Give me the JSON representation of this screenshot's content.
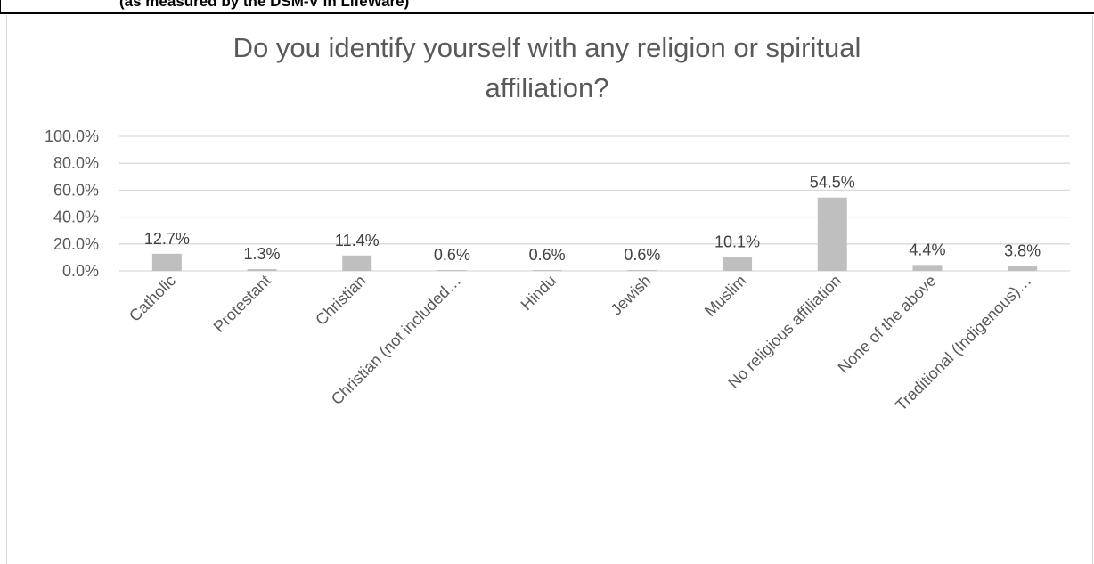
{
  "document": {
    "heading_fragment": "(as measured by the DSM-V in LifeWare)"
  },
  "chart_data": {
    "type": "bar",
    "title_lines": [
      "Do you identify yourself with any religion or spiritual",
      "affiliation?"
    ],
    "categories": [
      "Catholic",
      "Protestant",
      "Christian",
      "Christian (not included…",
      "Hindu",
      "Jewish",
      "Muslim",
      "No religious affiliation",
      "None of the above",
      "Traditional (Indigenous)…"
    ],
    "values": [
      12.7,
      1.3,
      11.4,
      0.6,
      0.6,
      0.6,
      10.1,
      54.5,
      4.4,
      3.8
    ],
    "data_labels": [
      "12.7%",
      "1.3%",
      "11.4%",
      "0.6%",
      "0.6%",
      "0.6%",
      "10.1%",
      "54.5%",
      "4.4%",
      "3.8%"
    ],
    "y_ticks": [
      0,
      20,
      40,
      60,
      80,
      100
    ],
    "y_tick_labels": [
      "0.0%",
      "20.0%",
      "40.0%",
      "60.0%",
      "80.0%",
      "100.0%"
    ],
    "ylim": [
      0,
      100
    ],
    "xlabel": "",
    "ylabel": "",
    "grid": true,
    "legend": "none",
    "colors": {
      "bar": "#bfbfbf",
      "grid": "#d9d9d9",
      "text": "#595959"
    }
  }
}
